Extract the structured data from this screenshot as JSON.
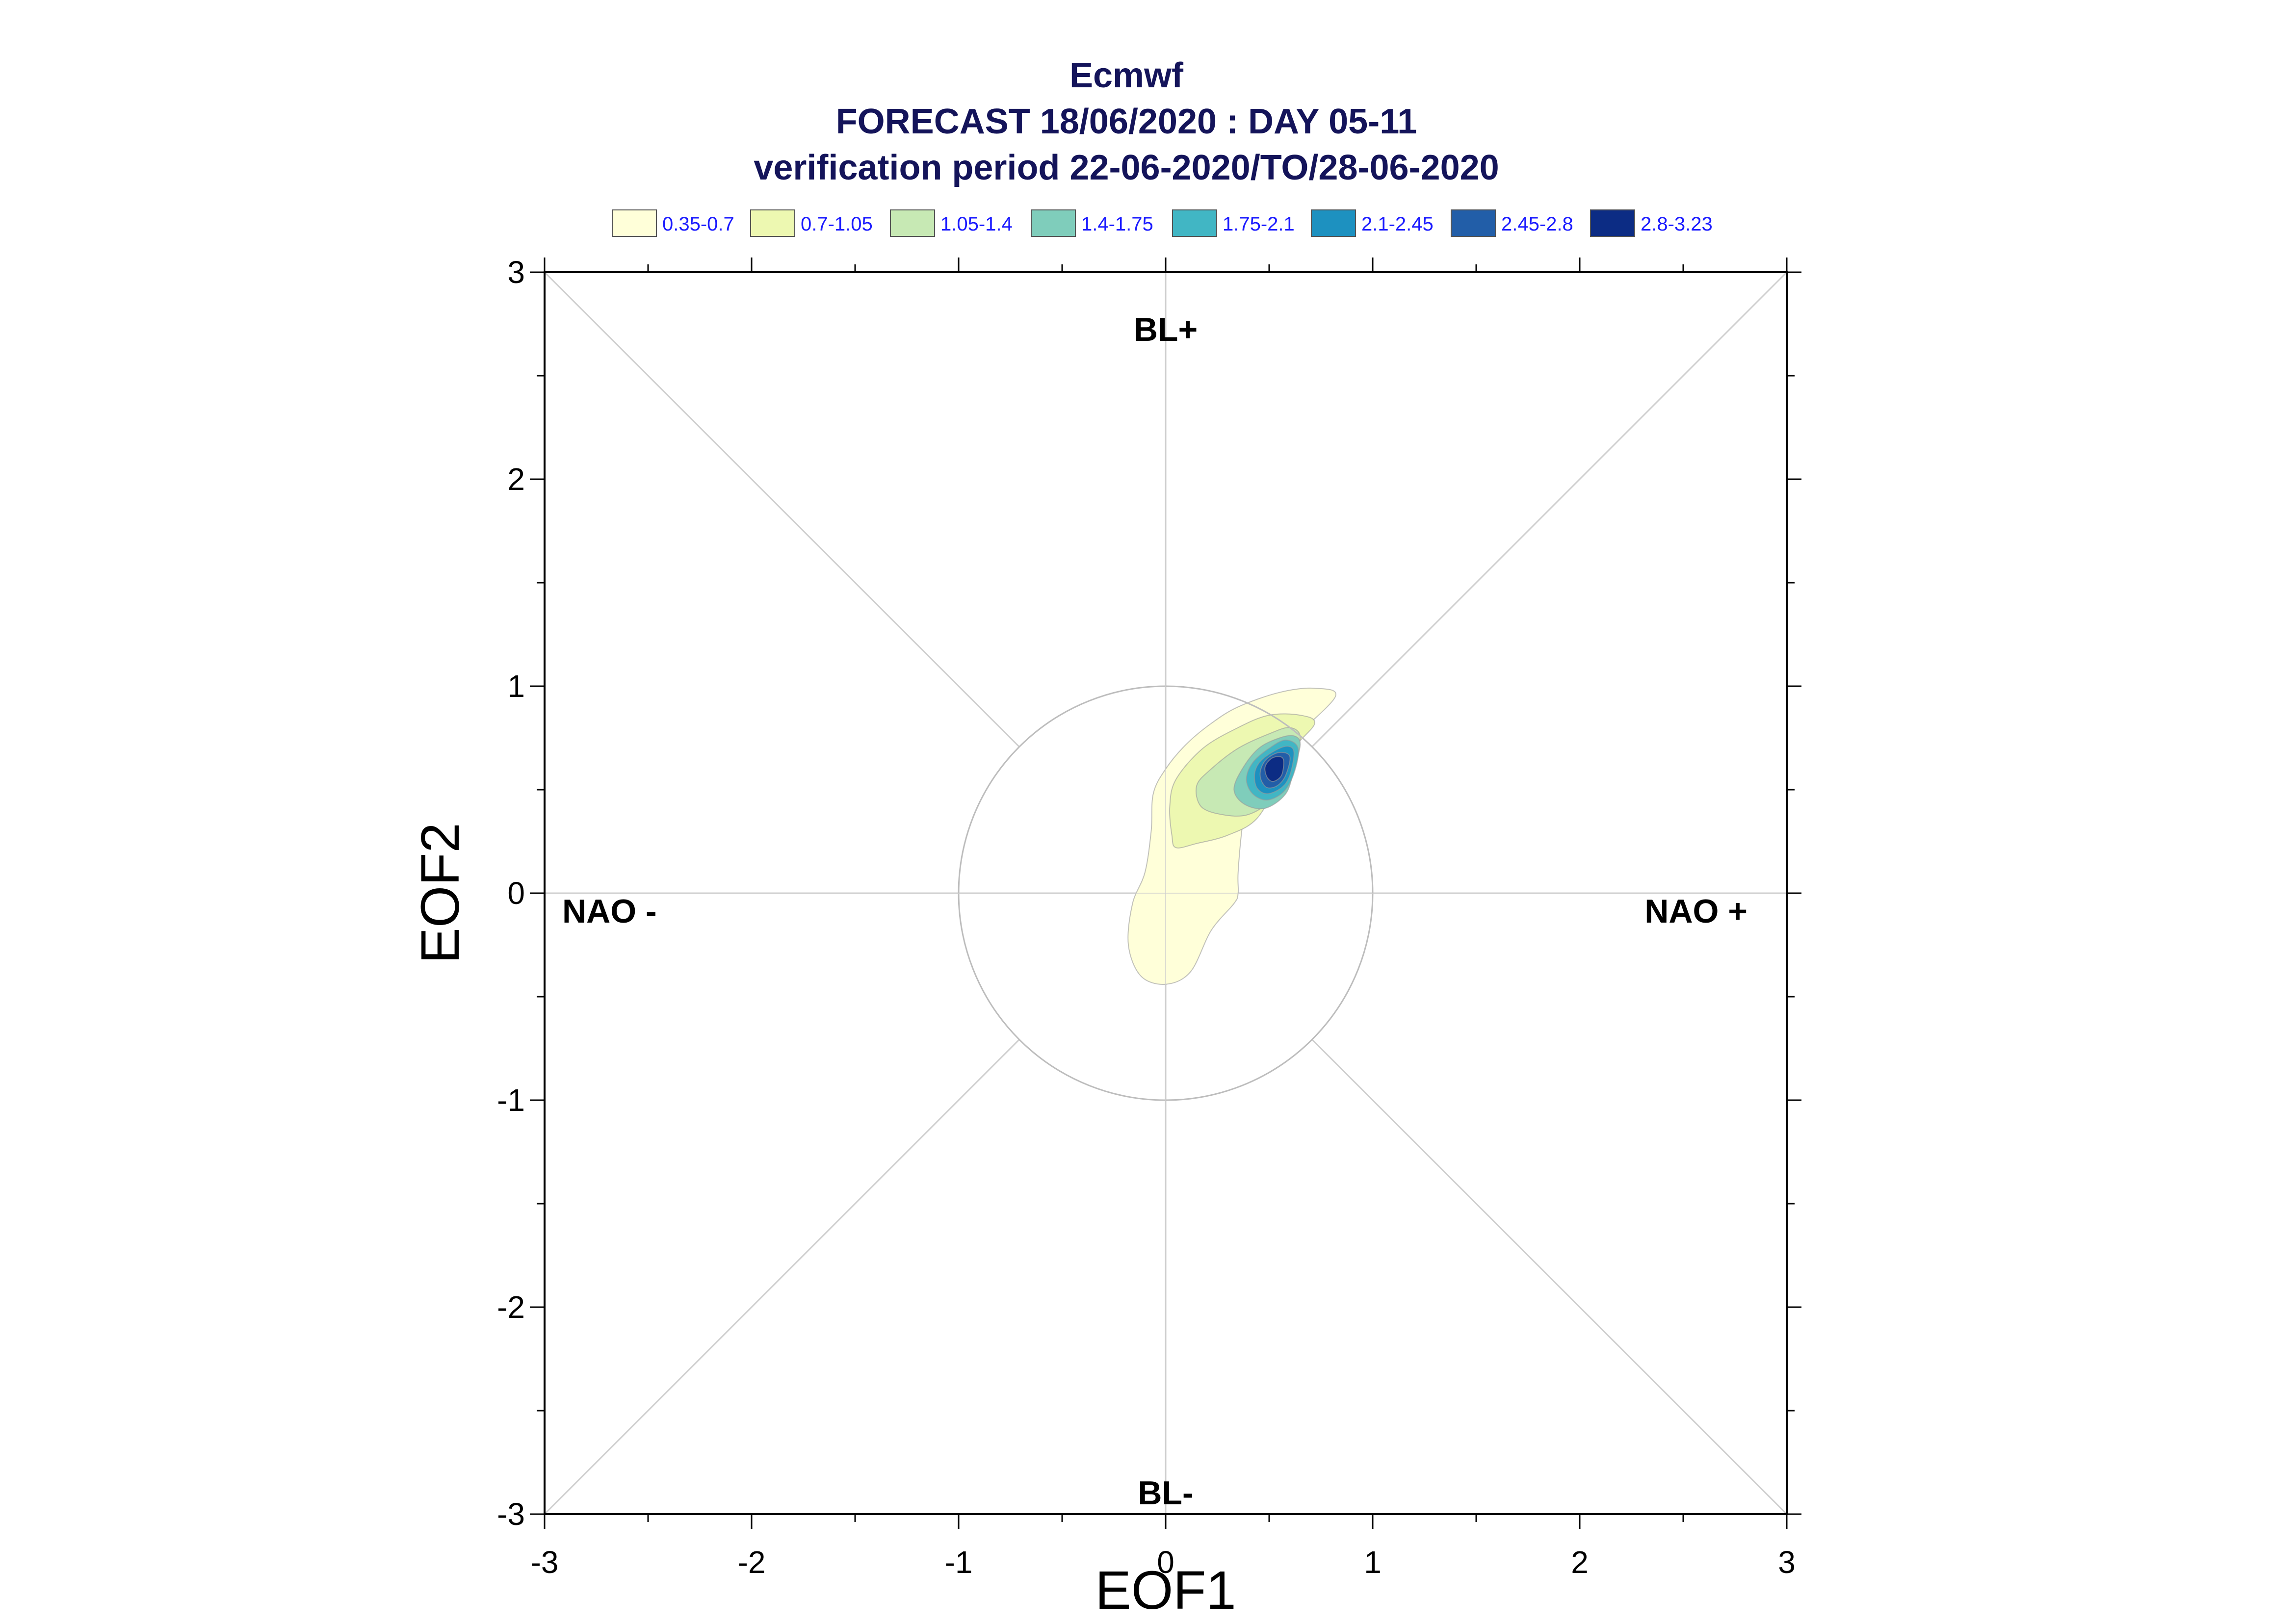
{
  "chart_data": {
    "type": "contour",
    "title_lines": [
      "Ecmwf",
      "FORECAST 18/06/2020 : DAY 05-11",
      "verification period 22-06-2020/TO/28-06-2020"
    ],
    "xlabel": "EOF1",
    "ylabel": "EOF2",
    "xlim": [
      -3,
      3
    ],
    "ylim": [
      -3,
      3
    ],
    "x_ticks": [
      "-3",
      "-2",
      "-1",
      "0",
      "1",
      "2",
      "3"
    ],
    "y_ticks": [
      "-3",
      "-2",
      "-1",
      "0",
      "1",
      "2",
      "3"
    ],
    "regime_labels": {
      "top": "BL+",
      "bottom": "BL-",
      "left": "NAO -",
      "right": "NAO +"
    },
    "unit_circle_radius": 1,
    "legend": [
      {
        "label": "0.35-0.7",
        "color": "#ffffd9"
      },
      {
        "label": "0.7-1.05",
        "color": "#edf8b1"
      },
      {
        "label": "1.05-1.4",
        "color": "#c7e9b4"
      },
      {
        "label": "1.4-1.75",
        "color": "#7fcdbb"
      },
      {
        "label": "1.75-2.1",
        "color": "#41b6c4"
      },
      {
        "label": "2.1-2.45",
        "color": "#1d91c0"
      },
      {
        "label": "2.45-2.8",
        "color": "#225ea8"
      },
      {
        "label": "2.8-3.23",
        "color": "#0c2c84"
      }
    ],
    "density_levels": [
      {
        "level": "0.35-0.7",
        "polygon": [
          [
            0.82,
            0.95
          ],
          [
            0.62,
            0.75
          ],
          [
            0.5,
            0.62
          ],
          [
            0.4,
            0.5
          ],
          [
            0.37,
            0.32
          ],
          [
            0.35,
            0.1
          ],
          [
            0.35,
            0.0
          ],
          [
            0.33,
            -0.05
          ],
          [
            0.22,
            -0.18
          ],
          [
            0.12,
            -0.38
          ],
          [
            0.0,
            -0.44
          ],
          [
            -0.12,
            -0.4
          ],
          [
            -0.18,
            -0.25
          ],
          [
            -0.16,
            -0.05
          ],
          [
            -0.1,
            0.1
          ],
          [
            -0.07,
            0.3
          ],
          [
            -0.06,
            0.48
          ],
          [
            0.0,
            0.6
          ],
          [
            0.1,
            0.72
          ],
          [
            0.22,
            0.82
          ],
          [
            0.35,
            0.9
          ],
          [
            0.55,
            0.97
          ],
          [
            0.72,
            0.99
          ]
        ]
      },
      {
        "level": "0.7-1.05",
        "polygon": [
          [
            0.72,
            0.82
          ],
          [
            0.62,
            0.7
          ],
          [
            0.55,
            0.55
          ],
          [
            0.44,
            0.36
          ],
          [
            0.3,
            0.28
          ],
          [
            0.15,
            0.24
          ],
          [
            0.05,
            0.22
          ],
          [
            0.03,
            0.28
          ],
          [
            0.02,
            0.42
          ],
          [
            0.05,
            0.55
          ],
          [
            0.18,
            0.7
          ],
          [
            0.35,
            0.8
          ],
          [
            0.5,
            0.86
          ],
          [
            0.65,
            0.86
          ]
        ]
      },
      {
        "level": "1.05-1.4",
        "polygon": [
          [
            0.65,
            0.75
          ],
          [
            0.6,
            0.6
          ],
          [
            0.52,
            0.46
          ],
          [
            0.4,
            0.38
          ],
          [
            0.27,
            0.38
          ],
          [
            0.17,
            0.42
          ],
          [
            0.15,
            0.52
          ],
          [
            0.22,
            0.6
          ],
          [
            0.35,
            0.7
          ],
          [
            0.5,
            0.77
          ],
          [
            0.6,
            0.8
          ]
        ]
      },
      {
        "level": "1.4-1.75",
        "polygon": [
          [
            0.65,
            0.72
          ],
          [
            0.62,
            0.6
          ],
          [
            0.58,
            0.48
          ],
          [
            0.48,
            0.41
          ],
          [
            0.38,
            0.43
          ],
          [
            0.33,
            0.5
          ],
          [
            0.37,
            0.6
          ],
          [
            0.45,
            0.7
          ],
          [
            0.55,
            0.75
          ],
          [
            0.62,
            0.76
          ]
        ]
      },
      {
        "level": "1.75-2.1",
        "polygon": [
          [
            0.64,
            0.7
          ],
          [
            0.62,
            0.58
          ],
          [
            0.57,
            0.49
          ],
          [
            0.49,
            0.45
          ],
          [
            0.42,
            0.48
          ],
          [
            0.39,
            0.55
          ],
          [
            0.42,
            0.63
          ],
          [
            0.5,
            0.7
          ],
          [
            0.58,
            0.74
          ]
        ]
      },
      {
        "level": "2.1-2.45",
        "polygon": [
          [
            0.62,
            0.68
          ],
          [
            0.6,
            0.57
          ],
          [
            0.56,
            0.51
          ],
          [
            0.49,
            0.48
          ],
          [
            0.44,
            0.51
          ],
          [
            0.43,
            0.58
          ],
          [
            0.46,
            0.64
          ],
          [
            0.53,
            0.69
          ],
          [
            0.59,
            0.71
          ]
        ]
      },
      {
        "level": "2.45-2.8",
        "polygon": [
          [
            0.6,
            0.66
          ],
          [
            0.58,
            0.57
          ],
          [
            0.54,
            0.52
          ],
          [
            0.49,
            0.51
          ],
          [
            0.46,
            0.55
          ],
          [
            0.46,
            0.6
          ],
          [
            0.49,
            0.65
          ],
          [
            0.55,
            0.68
          ]
        ]
      },
      {
        "level": "2.8-3.23",
        "polygon": [
          [
            0.57,
            0.64
          ],
          [
            0.56,
            0.57
          ],
          [
            0.52,
            0.54
          ],
          [
            0.49,
            0.56
          ],
          [
            0.48,
            0.61
          ],
          [
            0.51,
            0.65
          ],
          [
            0.55,
            0.66
          ]
        ]
      }
    ],
    "grid": false,
    "legend_position": "top"
  }
}
